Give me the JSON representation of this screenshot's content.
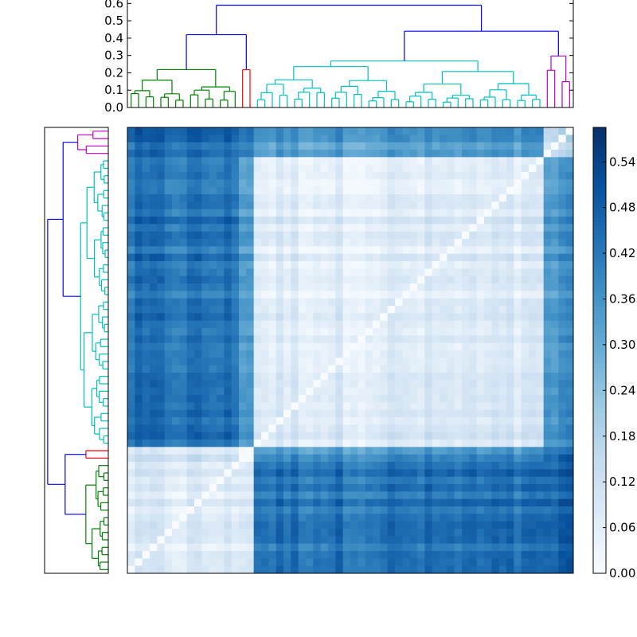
{
  "chart_data": {
    "type": "heatmap",
    "title": "",
    "n_leaves": 60,
    "colormap": "Blues",
    "colors": {
      "cmap_low": "#f7fbff",
      "cmap_mid": "#6baed6",
      "cmap_high": "#08306b",
      "cluster_green": "#008000",
      "cluster_red": "#ff0000",
      "cluster_cyan": "#00bfbf",
      "cluster_magenta": "#bf00bf",
      "link_above_threshold": "#0000ff"
    },
    "clusters": [
      {
        "id": "A",
        "color": "green",
        "size": 15
      },
      {
        "id": "B",
        "color": "red",
        "size": 2
      },
      {
        "id": "C",
        "color": "cyan",
        "size": 39
      },
      {
        "id": "D",
        "color": "magenta",
        "size": 4
      }
    ],
    "mean_distance": {
      "A": {
        "A": 0.07,
        "B": 0.1,
        "C": 0.43,
        "D": 0.46
      },
      "B": {
        "A": 0.1,
        "B": 0.0,
        "C": 0.36,
        "D": 0.44
      },
      "C": {
        "A": 0.43,
        "B": 0.36,
        "C": 0.07,
        "D": 0.35
      },
      "D": {
        "A": 0.46,
        "B": 0.44,
        "C": 0.35,
        "D": 0.15
      }
    },
    "dendrogram_top": {
      "ylim": [
        0,
        0.62
      ],
      "yticks": [
        "0.0",
        "0.1",
        "0.2",
        "0.3",
        "0.4",
        "0.5",
        "0.6"
      ],
      "root_height": 0.59,
      "merges": [
        {
          "join": [
            "A",
            "B"
          ],
          "height": 0.42
        },
        {
          "join": [
            "C",
            "D"
          ],
          "height": 0.44
        },
        {
          "join": [
            "AB",
            "CD"
          ],
          "height": 0.59
        }
      ],
      "cluster_heights": {
        "A": 0.24,
        "B": 0.28,
        "C": 0.27,
        "D": 0.31
      }
    },
    "colorbar": {
      "range": [
        0.0,
        0.5852
      ],
      "ticks": [
        "0.00",
        "0.06",
        "0.12",
        "0.18",
        "0.24",
        "0.30",
        "0.36",
        "0.42",
        "0.48",
        "0.54"
      ]
    }
  }
}
